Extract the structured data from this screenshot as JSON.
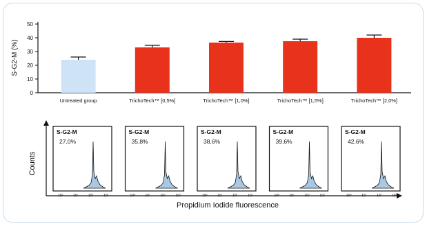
{
  "colors": {
    "untreated_bar": "#cfe3f6",
    "treated_bar": "#e8321b",
    "card_border": "#c9dcec",
    "histogram_fill": "#a9c8e4",
    "axis": "#111111"
  },
  "chart_data": [
    {
      "type": "bar",
      "ylabel": "S-G2-M (%)",
      "ylim": [
        0,
        50
      ],
      "yticks": [
        "0",
        "10",
        "20",
        "30",
        "40",
        "50"
      ],
      "categories": [
        "Untreated group",
        "TrichoTech™ [0,5%]",
        "TrichoTech™ [1,0%]",
        "TrichoTech™ [1,5%]",
        "TrichoTech™ [2,0%]"
      ],
      "values": [
        24,
        33,
        36.5,
        37.5,
        40
      ],
      "errors": [
        2,
        1.5,
        0.8,
        1.5,
        2
      ],
      "grid": false
    },
    {
      "type": "histogram-panels",
      "ylabel": "Counts",
      "xlabel": "Propidium Iodide fluorescence",
      "xticks": [
        "10⁰",
        "10¹",
        "10²",
        "10³"
      ],
      "panels": [
        {
          "label": "S-G2-M",
          "value": "27,0%"
        },
        {
          "label": "S-G2-M",
          "value": "35,8%"
        },
        {
          "label": "S-G2-M",
          "value": "38,6%"
        },
        {
          "label": "S-G2-M",
          "value": "39,6%"
        },
        {
          "label": "S-G2-M",
          "value": "42,6%"
        }
      ]
    }
  ]
}
